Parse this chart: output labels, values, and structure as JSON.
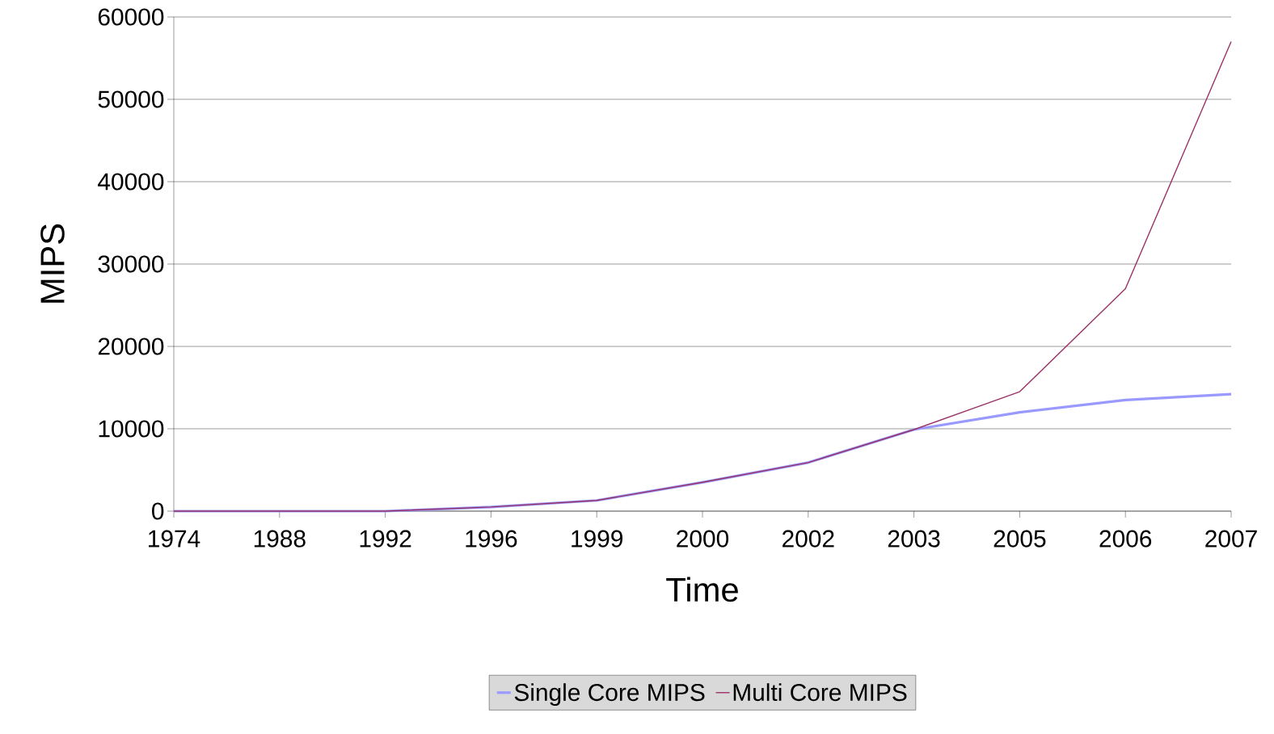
{
  "chart_data": {
    "type": "line",
    "xlabel": "Time",
    "ylabel": "MIPS",
    "categories": [
      "1974",
      "1988",
      "1992",
      "1996",
      "1999",
      "2000",
      "2002",
      "2003",
      "2005",
      "2006",
      "2007"
    ],
    "series": [
      {
        "name": "Single Core MIPS",
        "color": "#9999ff",
        "values": [
          0,
          0,
          0,
          500,
          1300,
          3500,
          5900,
          9900,
          12000,
          13500,
          14200
        ]
      },
      {
        "name": "Multi Core MIPS",
        "color": "#993366",
        "values": [
          0,
          0,
          0,
          500,
          1300,
          3500,
          5900,
          9900,
          14500,
          27000,
          57000
        ]
      }
    ],
    "ylim": [
      0,
      60000
    ],
    "yticks": [
      0,
      10000,
      20000,
      30000,
      40000,
      50000,
      60000
    ],
    "grid": "y",
    "legend": "bottom",
    "marker": "none",
    "line_style": "solid"
  }
}
